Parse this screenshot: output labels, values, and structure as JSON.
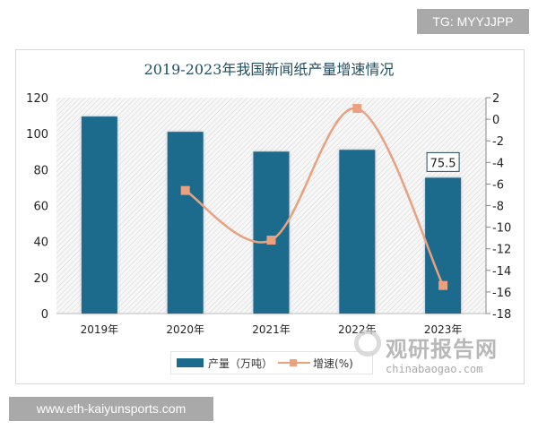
{
  "badge": "TG: MYYJJPP",
  "footer_site": "www.eth-kaiyunsports.com",
  "watermark": {
    "cn": "观研报告网",
    "en": "chinabaogao.com"
  },
  "chart_data": {
    "type": "bar",
    "title": "2019-2023年我国新闻纸产量增速情况",
    "categories": [
      "2019年",
      "2020年",
      "2021年",
      "2022年",
      "2023年"
    ],
    "series": [
      {
        "name": "产量（万吨）",
        "type": "bar",
        "axis": "left",
        "values": [
          109.5,
          101,
          90,
          91,
          75.5
        ],
        "color": "#1c6a8c"
      },
      {
        "name": "增速(%)",
        "type": "line",
        "axis": "right",
        "values": [
          null,
          -6.6,
          -11.2,
          1.0,
          -15.4
        ],
        "color": "#e9a17f"
      }
    ],
    "data_labels": [
      {
        "series": 0,
        "index": 4,
        "text": "75.5"
      }
    ],
    "left_axis": {
      "min": 0,
      "max": 120,
      "step": 20,
      "ticks": [
        "0",
        "20",
        "40",
        "60",
        "80",
        "100",
        "120"
      ]
    },
    "right_axis": {
      "min": -18,
      "max": 2,
      "step": 2,
      "ticks": [
        "-18",
        "-16",
        "-14",
        "-12",
        "-10",
        "-8",
        "-6",
        "-4",
        "-2",
        "0",
        "2"
      ]
    },
    "legend": "bottom-center"
  }
}
